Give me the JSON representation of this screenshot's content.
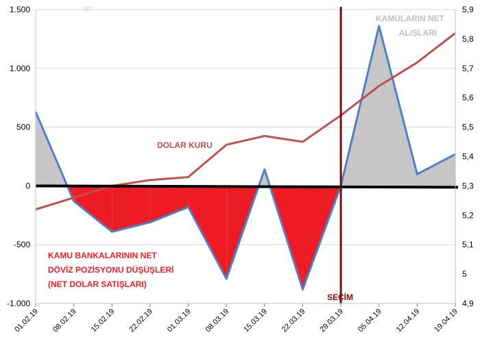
{
  "chart_data": {
    "type": "area",
    "categories": [
      "01.02.19",
      "08.02.19",
      "15.02.19",
      "22.02.19",
      "01.03.19",
      "08.03.19",
      "15.03.19",
      "22.03.19",
      "29.03.19",
      "05.04.19",
      "12.04.19",
      "19.04.19"
    ],
    "y_left": {
      "ylim": [
        -1000,
        1500
      ],
      "ticks": [
        -1000,
        -500,
        0,
        500,
        1000,
        1500
      ],
      "tick_labels": [
        "-1.000",
        "-500",
        "0",
        "500",
        "1.000",
        "1.500"
      ]
    },
    "y_right": {
      "ylim": [
        4.9,
        5.9
      ],
      "ticks": [
        4.9,
        5.0,
        5.1,
        5.2,
        5.3,
        5.4,
        5.5,
        5.6,
        5.7,
        5.8,
        5.9
      ],
      "tick_labels": [
        "4,9",
        "5",
        "5,1",
        "5,2",
        "5,3",
        "5,4",
        "5,5",
        "5,6",
        "5,7",
        "5,8",
        "5,9"
      ]
    },
    "series": [
      {
        "axis": "left",
        "type": "area",
        "values": [
          630,
          -130,
          -390,
          -310,
          -180,
          -790,
          140,
          -880,
          0,
          1360,
          100,
          270
        ],
        "line_color": "#4f7fc6",
        "positive_fill": "#c6c6c6",
        "negative_fill": "#ed1c24"
      },
      {
        "axis": "right",
        "type": "line",
        "values": [
          5.22,
          5.26,
          5.3,
          5.32,
          5.33,
          5.44,
          5.47,
          5.45,
          5.54,
          5.64,
          5.72,
          5.82
        ],
        "color": "#c0504d"
      }
    ],
    "zero_line": {
      "value": 0,
      "color": "#000000"
    },
    "annotations": {
      "net_purchases": {
        "lines": [
          "KAMULARIN NET",
          "ALIŞLARI"
        ],
        "color": "#bfbfbf"
      },
      "dollar_rate": {
        "text": "DOLAR KURU",
        "color": "#c0504d"
      },
      "net_sales": {
        "lines": [
          "KAMU BANKALARININ NET",
          "DÖVİZ POZİSYONU DÜŞÜŞLERİ",
          "(NET DOLAR SATIŞLARI)"
        ],
        "color": "#ed1c24"
      },
      "election": {
        "text": "SEÇİM",
        "category": "29.03.19",
        "color": "#7b0c0c"
      },
      "faint_label": {
        "text": "587",
        "color": "#c8c8c8"
      }
    },
    "grid": true,
    "legend": "none"
  }
}
